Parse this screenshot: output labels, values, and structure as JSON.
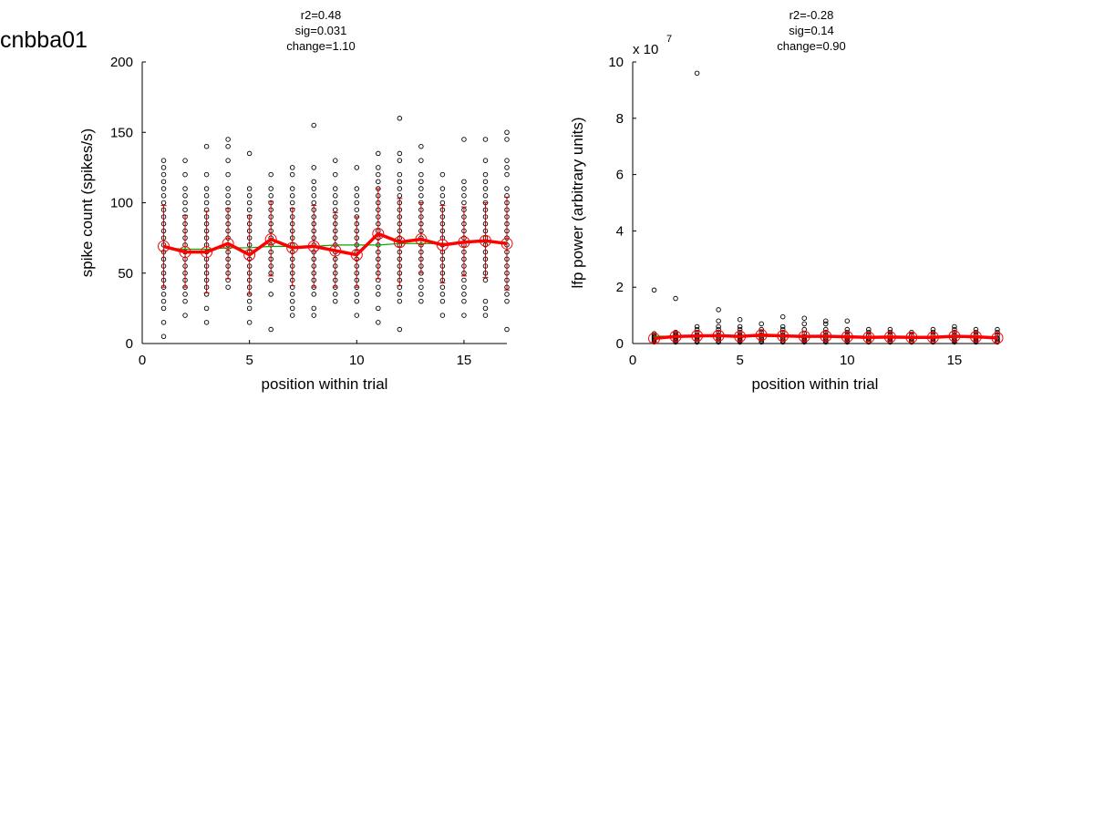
{
  "title": "cnbba01",
  "colors": {
    "points": "#000000",
    "mean": "#ff0000",
    "fit": "#00aa00",
    "errorbar": "#cc0000"
  },
  "chart_data": [
    {
      "type": "scatter",
      "stats": [
        "r2=0.48",
        "sig=0.031",
        "change=1.10"
      ],
      "xlabel": "position within trial",
      "ylabel": "spike count (spikes/s)",
      "xlim": [
        0,
        17
      ],
      "ylim": [
        0,
        200
      ],
      "xticks": [
        0,
        5,
        10,
        15
      ],
      "yticks": [
        0,
        50,
        100,
        150,
        200
      ],
      "xtick_labels": [
        "0",
        "5",
        "10",
        "15"
      ],
      "ytick_labels": [
        "0",
        "50",
        "100",
        "150",
        "200"
      ],
      "x": [
        1,
        2,
        3,
        4,
        5,
        6,
        7,
        8,
        9,
        10,
        11,
        12,
        13,
        14,
        15,
        16,
        17
      ],
      "mean": [
        69,
        65,
        65,
        71,
        63,
        74,
        68,
        69,
        66,
        63,
        78,
        72,
        74,
        70,
        72,
        73,
        71
      ],
      "fit": [
        68,
        67,
        67,
        68,
        68,
        69,
        69,
        69,
        70,
        70,
        70,
        71,
        71,
        71,
        72,
        72,
        72
      ],
      "err_low": [
        40,
        40,
        36,
        46,
        35,
        48,
        41,
        40,
        40,
        40,
        46,
        41,
        50,
        43,
        48,
        47,
        38
      ],
      "err_high": [
        98,
        91,
        94,
        96,
        91,
        101,
        96,
        98,
        93,
        90,
        110,
        103,
        100,
        98,
        97,
        100,
        104
      ],
      "points": [
        [
          5,
          15,
          25,
          30,
          35,
          40,
          45,
          50,
          55,
          60,
          65,
          70,
          75,
          80,
          85,
          90,
          95,
          100,
          105,
          110,
          115,
          120,
          125,
          130
        ],
        [
          20,
          30,
          35,
          40,
          45,
          50,
          55,
          60,
          65,
          70,
          75,
          80,
          85,
          90,
          95,
          100,
          105,
          110,
          120,
          130
        ],
        [
          15,
          25,
          35,
          40,
          45,
          50,
          55,
          60,
          65,
          70,
          75,
          80,
          85,
          90,
          95,
          100,
          105,
          110,
          120,
          140
        ],
        [
          40,
          45,
          50,
          55,
          60,
          65,
          70,
          75,
          80,
          85,
          90,
          95,
          100,
          105,
          110,
          120,
          130,
          140,
          145
        ],
        [
          15,
          25,
          30,
          35,
          40,
          45,
          50,
          55,
          60,
          65,
          70,
          75,
          80,
          85,
          90,
          95,
          100,
          105,
          110,
          135
        ],
        [
          10,
          35,
          45,
          50,
          55,
          60,
          65,
          70,
          75,
          80,
          85,
          90,
          95,
          100,
          105,
          110,
          120
        ],
        [
          20,
          25,
          30,
          35,
          40,
          45,
          50,
          55,
          60,
          65,
          70,
          75,
          80,
          85,
          90,
          95,
          100,
          105,
          110,
          120,
          125
        ],
        [
          20,
          25,
          35,
          40,
          45,
          50,
          55,
          60,
          65,
          70,
          75,
          80,
          85,
          90,
          95,
          100,
          105,
          110,
          115,
          125,
          155
        ],
        [
          30,
          35,
          40,
          45,
          50,
          55,
          60,
          65,
          70,
          75,
          80,
          85,
          90,
          95,
          100,
          105,
          110,
          120,
          130
        ],
        [
          20,
          30,
          35,
          40,
          45,
          50,
          55,
          60,
          65,
          70,
          75,
          80,
          85,
          90,
          95,
          100,
          105,
          110,
          125
        ],
        [
          15,
          25,
          35,
          40,
          45,
          50,
          55,
          60,
          65,
          70,
          75,
          80,
          85,
          90,
          95,
          100,
          105,
          110,
          115,
          120,
          125,
          135
        ],
        [
          10,
          30,
          35,
          40,
          45,
          50,
          55,
          60,
          65,
          70,
          75,
          80,
          85,
          90,
          95,
          100,
          105,
          110,
          115,
          120,
          130,
          135,
          160
        ],
        [
          30,
          35,
          40,
          45,
          50,
          55,
          60,
          65,
          70,
          75,
          80,
          85,
          90,
          95,
          100,
          105,
          110,
          115,
          120,
          130,
          140
        ],
        [
          20,
          30,
          35,
          40,
          45,
          50,
          55,
          60,
          65,
          70,
          75,
          80,
          85,
          90,
          95,
          100,
          105,
          110,
          120
        ],
        [
          20,
          30,
          35,
          40,
          45,
          50,
          55,
          60,
          65,
          70,
          75,
          80,
          85,
          90,
          95,
          100,
          105,
          110,
          115,
          145
        ],
        [
          20,
          25,
          30,
          45,
          50,
          55,
          60,
          65,
          70,
          75,
          80,
          85,
          90,
          95,
          100,
          105,
          110,
          115,
          120,
          130,
          145
        ],
        [
          10,
          30,
          35,
          40,
          45,
          50,
          55,
          60,
          65,
          70,
          75,
          80,
          85,
          90,
          95,
          100,
          105,
          110,
          120,
          125,
          130,
          145,
          150
        ]
      ]
    },
    {
      "type": "scatter",
      "stats": [
        "r2=-0.28",
        "sig=0.14",
        "change=0.90"
      ],
      "xlabel": "position within trial",
      "ylabel": "lfp power (arbitrary units)",
      "multiplier_base": "x 10",
      "multiplier_exp": "7",
      "xlim": [
        0,
        17
      ],
      "ylim": [
        0,
        10
      ],
      "xticks": [
        0,
        5,
        10,
        15
      ],
      "yticks": [
        0,
        2,
        4,
        6,
        8,
        10
      ],
      "xtick_labels": [
        "0",
        "5",
        "10",
        "15"
      ],
      "ytick_labels": [
        "0",
        "2",
        "4",
        "6",
        "8",
        "10"
      ],
      "x": [
        1,
        2,
        3,
        4,
        5,
        6,
        7,
        8,
        9,
        10,
        11,
        12,
        13,
        14,
        15,
        16,
        17
      ],
      "mean": [
        0.18,
        0.25,
        0.27,
        0.28,
        0.25,
        0.3,
        0.27,
        0.25,
        0.26,
        0.24,
        0.22,
        0.23,
        0.22,
        0.22,
        0.26,
        0.24,
        0.2
      ],
      "fit": [
        0.26,
        0.26,
        0.26,
        0.26,
        0.25,
        0.25,
        0.25,
        0.25,
        0.24,
        0.24,
        0.24,
        0.24,
        0.23,
        0.23,
        0.23,
        0.23,
        0.22
      ],
      "err_low": [
        0.05,
        0.1,
        0.12,
        0.12,
        0.1,
        0.14,
        0.12,
        0.1,
        0.11,
        0.1,
        0.09,
        0.1,
        0.09,
        0.09,
        0.11,
        0.1,
        0.08
      ],
      "err_high": [
        0.35,
        0.42,
        0.45,
        0.45,
        0.42,
        0.48,
        0.44,
        0.42,
        0.43,
        0.4,
        0.38,
        0.39,
        0.38,
        0.38,
        0.42,
        0.4,
        0.35
      ],
      "points": [
        [
          0.05,
          0.1,
          0.15,
          0.2,
          0.25,
          0.3,
          0.35,
          1.9
        ],
        [
          0.05,
          0.1,
          0.15,
          0.2,
          0.25,
          0.3,
          0.35,
          0.4,
          1.6
        ],
        [
          0.05,
          0.1,
          0.15,
          0.2,
          0.25,
          0.3,
          0.4,
          0.5,
          0.6,
          9.6
        ],
        [
          0.05,
          0.1,
          0.15,
          0.2,
          0.3,
          0.4,
          0.5,
          0.6,
          0.8,
          1.2
        ],
        [
          0.05,
          0.1,
          0.15,
          0.2,
          0.25,
          0.3,
          0.4,
          0.5,
          0.6,
          0.85
        ],
        [
          0.05,
          0.1,
          0.15,
          0.2,
          0.3,
          0.4,
          0.5,
          0.7
        ],
        [
          0.05,
          0.1,
          0.15,
          0.2,
          0.3,
          0.4,
          0.5,
          0.6,
          0.95
        ],
        [
          0.05,
          0.1,
          0.15,
          0.2,
          0.25,
          0.35,
          0.5,
          0.7,
          0.9
        ],
        [
          0.05,
          0.1,
          0.15,
          0.2,
          0.3,
          0.4,
          0.5,
          0.7,
          0.8
        ],
        [
          0.05,
          0.1,
          0.15,
          0.2,
          0.3,
          0.4,
          0.5,
          0.8
        ],
        [
          0.05,
          0.1,
          0.15,
          0.2,
          0.3,
          0.4,
          0.5
        ],
        [
          0.05,
          0.1,
          0.15,
          0.2,
          0.3,
          0.4,
          0.5
        ],
        [
          0.05,
          0.1,
          0.15,
          0.2,
          0.3,
          0.4
        ],
        [
          0.05,
          0.1,
          0.15,
          0.2,
          0.3,
          0.4,
          0.5
        ],
        [
          0.05,
          0.1,
          0.15,
          0.2,
          0.3,
          0.4,
          0.5,
          0.6
        ],
        [
          0.05,
          0.1,
          0.15,
          0.2,
          0.3,
          0.4,
          0.5
        ],
        [
          0.05,
          0.1,
          0.15,
          0.2,
          0.3,
          0.4,
          0.5
        ]
      ]
    }
  ]
}
